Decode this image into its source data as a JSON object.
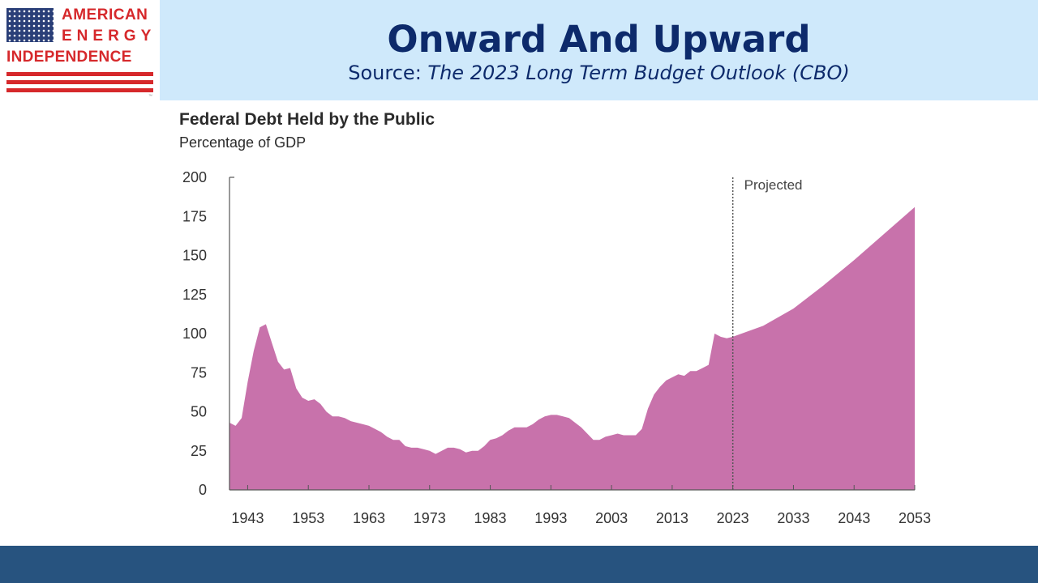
{
  "logo": {
    "line1": "AMERICAN",
    "line2": "ENERGY",
    "line3": "INDEPENDENCE",
    "trademark": "™"
  },
  "header": {
    "title": "Onward And Upward",
    "source_prefix": "Source: ",
    "source_name": "The 2023 Long Term Budget Outlook (CBO)"
  },
  "colors": {
    "fill": "#c872ab",
    "header_band": "#cfe9fb",
    "title": "#0d2a6b",
    "footer": "#27537f",
    "logo_red": "#d6282b"
  },
  "chart_data": {
    "type": "area",
    "title": "Federal Debt Held by the Public",
    "subtitle": "Percentage of GDP",
    "xlabel": "",
    "ylabel": "",
    "xlim": [
      1940,
      2053
    ],
    "ylim": [
      0,
      200
    ],
    "yticks": [
      0,
      25,
      50,
      75,
      100,
      125,
      150,
      175,
      200
    ],
    "xticks": [
      1943,
      1953,
      1963,
      1973,
      1983,
      1993,
      2003,
      2013,
      2023,
      2033,
      2043,
      2053
    ],
    "projection_marker": {
      "x": 2023,
      "label": "Projected"
    },
    "grid": false,
    "series": [
      {
        "x": [
          1940,
          1941,
          1942,
          1943,
          1944,
          1945,
          1946,
          1947,
          1948,
          1949,
          1950,
          1951,
          1952,
          1953,
          1954,
          1955,
          1956,
          1957,
          1958,
          1959,
          1960,
          1961,
          1962,
          1963,
          1964,
          1965,
          1966,
          1967,
          1968,
          1969,
          1970,
          1971,
          1972,
          1973,
          1974,
          1975,
          1976,
          1977,
          1978,
          1979,
          1980,
          1981,
          1982,
          1983,
          1984,
          1985,
          1986,
          1987,
          1988,
          1989,
          1990,
          1991,
          1992,
          1993,
          1994,
          1995,
          1996,
          1997,
          1998,
          1999,
          2000,
          2001,
          2002,
          2003,
          2004,
          2005,
          2006,
          2007,
          2008,
          2009,
          2010,
          2011,
          2012,
          2013,
          2014,
          2015,
          2016,
          2017,
          2018,
          2019,
          2020,
          2021,
          2022,
          2023,
          2028,
          2033,
          2038,
          2043,
          2048,
          2053
        ],
        "values": [
          43,
          41,
          46,
          69,
          89,
          104,
          106,
          94,
          82,
          77,
          78,
          65,
          59,
          57,
          58,
          55,
          50,
          47,
          47,
          46,
          44,
          43,
          42,
          41,
          39,
          37,
          34,
          32,
          32,
          28,
          27,
          27,
          26,
          25,
          23,
          25,
          27,
          27,
          26,
          24,
          25,
          25,
          28,
          32,
          33,
          35,
          38,
          40,
          40,
          40,
          42,
          45,
          47,
          48,
          48,
          47,
          46,
          43,
          40,
          36,
          32,
          32,
          34,
          35,
          36,
          35,
          35,
          35,
          39,
          52,
          61,
          66,
          70,
          72,
          74,
          73,
          76,
          76,
          78,
          80,
          100,
          98,
          97,
          98,
          105,
          116,
          131,
          147,
          164,
          181
        ]
      }
    ]
  }
}
